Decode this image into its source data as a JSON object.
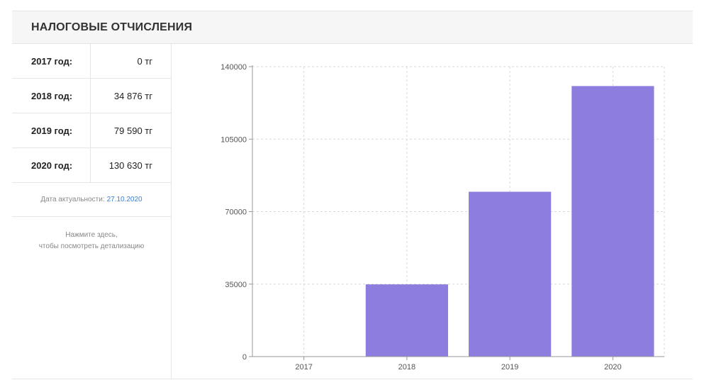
{
  "header": {
    "title": "НАЛОГОВЫЕ ОТЧИСЛЕНИЯ"
  },
  "table": {
    "rows": [
      {
        "year": "2017 год:",
        "value": "0 тг"
      },
      {
        "year": "2018 год:",
        "value": "34 876 тг"
      },
      {
        "year": "2019 год:",
        "value": "79 590 тг"
      },
      {
        "year": "2020 год:",
        "value": "130 630 тг"
      }
    ]
  },
  "actuality": {
    "label": "Дата актуальности:",
    "date": "27.10.2020"
  },
  "hint": {
    "line1": "Нажмите здесь,",
    "line2": "чтобы посмотреть детализацию"
  },
  "colors": {
    "bar": "#8c7ddf",
    "grid": "#d9d9d9",
    "axis": "#999999"
  },
  "chart_data": {
    "type": "bar",
    "categories": [
      "2017",
      "2018",
      "2019",
      "2020"
    ],
    "values": [
      0,
      34876,
      79590,
      130630
    ],
    "yticks": [
      "0",
      "35000",
      "70000",
      "105000",
      "140000"
    ],
    "ylim": [
      0,
      140000
    ],
    "grid": true,
    "legend": "none"
  }
}
